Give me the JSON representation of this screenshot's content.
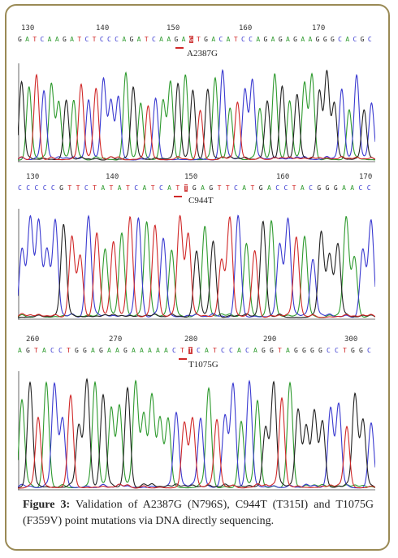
{
  "panels": [
    {
      "positions": [
        "130",
        "140",
        "150",
        "160",
        "170"
      ],
      "sequence": "GATCAAGATCTCCCAGATCAAGAGTGACATCCAGAGAGAAGGGCACGC",
      "mutation_label": "A2387G"
    },
    {
      "positions": [
        "130",
        "140",
        "150",
        "160",
        "170"
      ],
      "sequence": "CCCCCGTTCTATATCATCATTGAGTTCATGACCTACGGGAACC",
      "mutation_label": "C944T"
    },
    {
      "positions": [
        "260",
        "270",
        "280",
        "290",
        "300"
      ],
      "sequence": "AGTACCTGGAGAAGAAAAACTTCATCCACAGGTAGGGGCCTGGC",
      "mutation_label": "T1075G"
    }
  ],
  "caption": {
    "label": "Figure 3:",
    "text": " Validation of A2387G (N796S), C944T (T315I) and T1075G (F359V) point mutations via DNA directly sequencing."
  },
  "colors": {
    "A": "#2e9a2e",
    "C": "#3a3ad0",
    "G": "#222222",
    "T": "#d02828",
    "frame": "#9a8a55"
  }
}
